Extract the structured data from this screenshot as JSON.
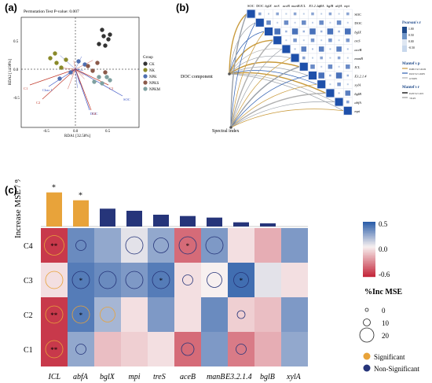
{
  "panel_a": {
    "label": "(a)",
    "title": "Permutation Test P-value: 0.007",
    "xlabel": "RDA1 [32.58%]",
    "ylabel": "RDA2 [14.98%]",
    "ticks_x": [
      "-0.5",
      "0.0",
      "0.5"
    ],
    "ticks_y": [
      "0.5",
      "0.0",
      "-0.5"
    ],
    "legend_title": "Group",
    "groups": [
      {
        "name": "CK",
        "color": "#333333"
      },
      {
        "name": "NK",
        "color": "#8a8a2a"
      },
      {
        "name": "NPK",
        "color": "#4f6fb0"
      },
      {
        "name": "NPKS",
        "color": "#8b5a4a"
      },
      {
        "name": "NPKM",
        "color": "#7fa0a0"
      }
    ],
    "vectors": [
      "SOC",
      "DOC",
      "C1",
      "C2",
      "C3",
      "C4",
      "Chao 1"
    ]
  },
  "panel_b": {
    "label": "(b)",
    "col_labels": [
      "SOC",
      "DOC",
      "bglX",
      "treS",
      "aceB",
      "manB",
      "ICL",
      "E3.2.1.4",
      "xylA",
      "bglB",
      "abfA",
      "mpi"
    ],
    "row_labels": [
      "SOC",
      "DOC",
      "bglX",
      "treS",
      "aceB",
      "manB",
      "ICL",
      "E3.2.1.4",
      "xylA",
      "bglB",
      "abfA",
      "mpi"
    ],
    "left_labels": [
      "DOC component",
      "Spectral index"
    ],
    "legend": {
      "pearson_title": "Pearson's r",
      "pearson_ticks": [
        "1.00",
        "0.50",
        "0.00",
        "-0.50"
      ],
      "mantel_p_title": "Mantel's p",
      "mantel_p_items": [
        "0.001<x<=0.01",
        "0.01<x<=0.05",
        "x>0.05"
      ],
      "mantel_r_title": "Mantel's r",
      "mantel_r_items": [
        "0.25<x<=0.5",
        "<0.25"
      ]
    }
  },
  "panel_c": {
    "label": "(c)",
    "bar_ylabel": "Increase MSE / %",
    "rows": [
      "C4",
      "C3",
      "C2",
      "C1"
    ],
    "legend": {
      "colorbar_ticks": [
        "0.5",
        "0.0",
        "-0.6"
      ],
      "size_title": "%Inc MSE",
      "size_items": [
        "0",
        "10",
        "20"
      ],
      "sig_label": "Significant",
      "nonsig_label": "Non-Significant",
      "sig_color": "#e8a33a",
      "nonsig_color": "#26357a"
    }
  },
  "chart_data": {
    "type": "heatmap",
    "categories": [
      "ICL",
      "abfA",
      "bglX",
      "mpi",
      "treS",
      "aceB",
      "manB",
      "E3.2.1.4",
      "bglB",
      "xylA"
    ],
    "bar_values": [
      13.0,
      10.0,
      6.8,
      6.0,
      4.5,
      4.0,
      3.4,
      1.6,
      1.2,
      0.0
    ],
    "bar_significant": [
      true,
      true,
      false,
      false,
      false,
      false,
      false,
      false,
      false,
      false
    ],
    "bar_stars": [
      "*",
      "*",
      "",
      "",
      "",
      "",
      "",
      "",
      "",
      ""
    ],
    "rows": [
      "C4",
      "C3",
      "C2",
      "C1"
    ],
    "correlation": [
      [
        -0.55,
        0.35,
        0.25,
        0.05,
        0.25,
        -0.4,
        0.3,
        -0.05,
        -0.2,
        0.3
      ],
      [
        -0.05,
        0.4,
        0.35,
        0.3,
        0.4,
        -0.05,
        0.0,
        0.45,
        0.05,
        -0.05
      ],
      [
        -0.55,
        0.4,
        0.2,
        -0.05,
        0.3,
        -0.05,
        0.35,
        -0.1,
        -0.15,
        0.3
      ],
      [
        -0.55,
        0.25,
        -0.15,
        -0.1,
        -0.05,
        -0.4,
        0.3,
        -0.35,
        -0.2,
        0.25
      ]
    ],
    "incmse": [
      [
        14,
        6,
        0,
        12,
        10,
        12,
        12,
        0,
        0,
        0
      ],
      [
        12,
        12,
        12,
        12,
        12,
        6,
        10,
        10,
        0,
        0
      ],
      [
        12,
        12,
        10,
        0,
        0,
        0,
        0,
        4,
        0,
        0
      ],
      [
        12,
        6,
        0,
        0,
        0,
        8,
        0,
        6,
        0,
        0
      ]
    ],
    "significant": [
      [
        true,
        false,
        false,
        false,
        false,
        false,
        false,
        false,
        false,
        false
      ],
      [
        true,
        false,
        false,
        false,
        false,
        false,
        false,
        false,
        false,
        false
      ],
      [
        true,
        true,
        true,
        false,
        false,
        false,
        false,
        false,
        false,
        false
      ],
      [
        true,
        false,
        false,
        false,
        false,
        false,
        false,
        false,
        false,
        false
      ]
    ],
    "stars": [
      [
        "**",
        "",
        "",
        "",
        "",
        "*",
        "",
        "",
        "",
        ""
      ],
      [
        "",
        "*",
        "",
        "",
        "*",
        "",
        "",
        "*",
        "",
        ""
      ],
      [
        "**",
        "*",
        "",
        "",
        "",
        "",
        "",
        "",
        "",
        ""
      ],
      [
        "**",
        "",
        "",
        "",
        "",
        "",
        "",
        "",
        "",
        ""
      ]
    ],
    "clim": [
      -0.6,
      0.5
    ]
  }
}
